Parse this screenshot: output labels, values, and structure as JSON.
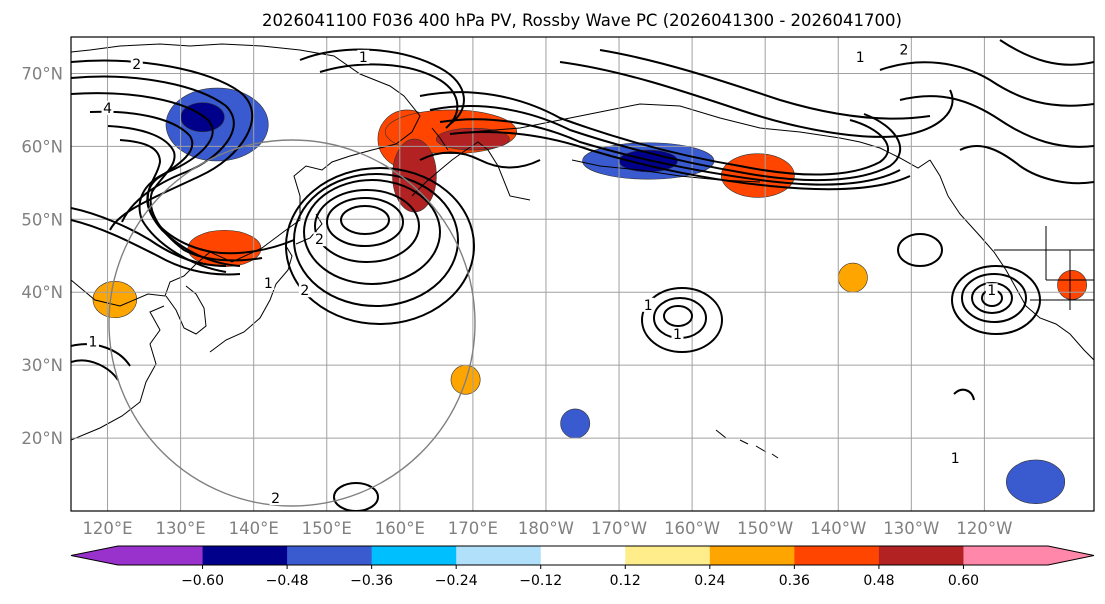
{
  "title": "2026041100 F036 400 hPa PV, Rossby Wave PC (2026041300 - 2026041700)",
  "map": {
    "lon_range": [
      115,
      255
    ],
    "lat_range": [
      10,
      75
    ],
    "lat_ticks": [
      {
        "value": 70,
        "label": "70°N"
      },
      {
        "value": 60,
        "label": "60°N"
      },
      {
        "value": 50,
        "label": "50°N"
      },
      {
        "value": 40,
        "label": "40°N"
      },
      {
        "value": 30,
        "label": "30°N"
      },
      {
        "value": 20,
        "label": "20°N"
      }
    ],
    "lon_ticks": [
      {
        "value": 120,
        "label": "120°E"
      },
      {
        "value": 130,
        "label": "130°E"
      },
      {
        "value": 140,
        "label": "140°E"
      },
      {
        "value": 150,
        "label": "150°E"
      },
      {
        "value": 160,
        "label": "160°E"
      },
      {
        "value": 170,
        "label": "170°E"
      },
      {
        "value": 180,
        "label": "180°W"
      },
      {
        "value": 190,
        "label": "170°W"
      },
      {
        "value": 200,
        "label": "160°W"
      },
      {
        "value": 210,
        "label": "150°W"
      },
      {
        "value": 220,
        "label": "140°W"
      },
      {
        "value": 230,
        "label": "130°W"
      },
      {
        "value": 240,
        "label": "120°W"
      }
    ],
    "colors": {
      "neg_extreme": "#9932cc",
      "neg5": "#00008b",
      "neg4": "#3a5bd0",
      "neg3": "#00bfff",
      "neg2": "#b0e0fa",
      "neutral": "#ffffff",
      "pos2": "#ffec8b",
      "pos3": "#ffa500",
      "pos4": "#ff4500",
      "pos5": "#b22222",
      "pos_extreme": "#ff88aa"
    },
    "anomalies": [
      {
        "lon": 161,
        "lat": 61,
        "rx": 4,
        "ry": 4,
        "level": "pos4"
      },
      {
        "lon": 167,
        "lat": 62,
        "rx": 9,
        "ry": 3,
        "level": "pos4"
      },
      {
        "lon": 170,
        "lat": 61,
        "rx": 5,
        "ry": 1.5,
        "level": "pos5"
      },
      {
        "lon": 162,
        "lat": 56,
        "rx": 3,
        "ry": 5,
        "level": "pos5"
      },
      {
        "lon": 136,
        "lat": 46,
        "rx": 5,
        "ry": 2.5,
        "level": "pos4"
      },
      {
        "lon": 209,
        "lat": 56,
        "rx": 5,
        "ry": 3,
        "level": "pos4"
      },
      {
        "lon": 194,
        "lat": 58,
        "rx": 9,
        "ry": 2.5,
        "level": "neg4"
      },
      {
        "lon": 194,
        "lat": 58,
        "rx": 4,
        "ry": 1.5,
        "level": "neg5"
      },
      {
        "lon": 135,
        "lat": 63,
        "rx": 7,
        "ry": 5,
        "level": "neg4"
      },
      {
        "lon": 133,
        "lat": 64,
        "rx": 3,
        "ry": 2,
        "level": "neg5"
      },
      {
        "lon": 121,
        "lat": 39,
        "rx": 3,
        "ry": 2.5,
        "level": "pos3"
      },
      {
        "lon": 222,
        "lat": 42,
        "rx": 2,
        "ry": 2,
        "level": "pos3"
      },
      {
        "lon": 252,
        "lat": 41,
        "rx": 2,
        "ry": 2,
        "level": "pos4"
      },
      {
        "lon": 184,
        "lat": 22,
        "rx": 2,
        "ry": 2,
        "level": "neg4"
      },
      {
        "lon": 247,
        "lat": 14,
        "rx": 4,
        "ry": 3,
        "level": "neg4"
      },
      {
        "lon": 169,
        "lat": 28,
        "rx": 2,
        "ry": 2,
        "level": "pos3"
      }
    ]
  },
  "colorbar": {
    "ticks": [
      "−0.60",
      "−0.48",
      "−0.36",
      "−0.24",
      "−0.12",
      "0.12",
      "0.24",
      "0.36",
      "0.48",
      "0.60"
    ]
  },
  "contour_labels": [
    {
      "lon": 124,
      "lat": 71,
      "text": "2"
    },
    {
      "lon": 120,
      "lat": 65,
      "text": "4"
    },
    {
      "lon": 155,
      "lat": 72,
      "text": "1"
    },
    {
      "lon": 149,
      "lat": 47,
      "text": "2"
    },
    {
      "lon": 147,
      "lat": 40,
      "text": "2"
    },
    {
      "lon": 142,
      "lat": 41,
      "text": "1"
    },
    {
      "lon": 143,
      "lat": 11.5,
      "text": "2"
    },
    {
      "lon": 118,
      "lat": 33,
      "text": "1"
    },
    {
      "lon": 194,
      "lat": 38,
      "text": "1"
    },
    {
      "lon": 198,
      "lat": 34,
      "text": "1"
    },
    {
      "lon": 223,
      "lat": 72,
      "text": "1"
    },
    {
      "lon": 229,
      "lat": 73,
      "text": "2"
    },
    {
      "lon": 241,
      "lat": 40,
      "text": "1"
    },
    {
      "lon": 236,
      "lat": 17,
      "text": "1"
    }
  ]
}
